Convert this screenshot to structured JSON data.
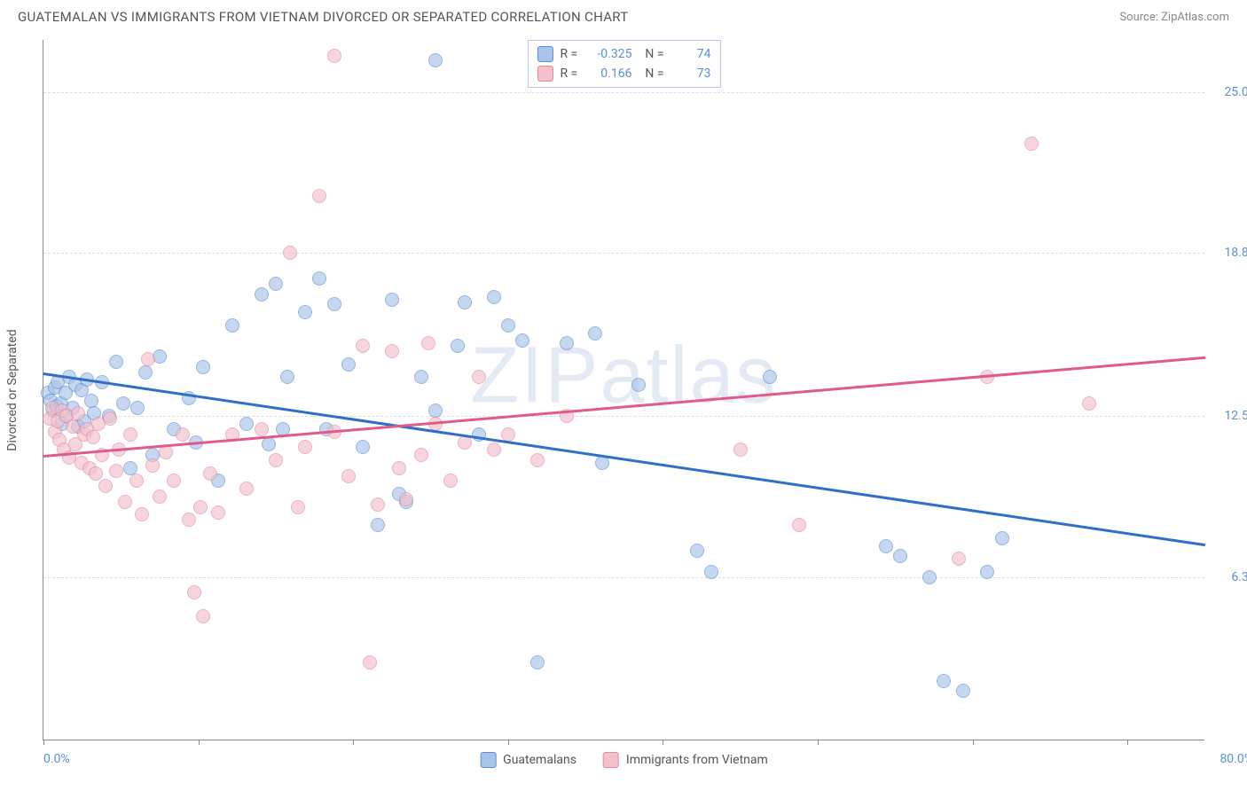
{
  "title": "GUATEMALAN VS IMMIGRANTS FROM VIETNAM DIVORCED OR SEPARATED CORRELATION CHART",
  "source_label": "Source:",
  "source_name": "ZipAtlas.com",
  "watermark": "ZIPatlas",
  "chart": {
    "type": "scatter",
    "xlim": [
      0,
      80
    ],
    "ylim": [
      0,
      27
    ],
    "yaxis_title": "Divorced or Separated",
    "yticks": [
      {
        "v": 6.3,
        "label": "6.3%"
      },
      {
        "v": 12.5,
        "label": "12.5%"
      },
      {
        "v": 18.8,
        "label": "18.8%"
      },
      {
        "v": 25.0,
        "label": "25.0%"
      }
    ],
    "xticks": [
      0,
      10.7,
      21.3,
      32.0,
      42.6,
      53.3,
      64.0,
      74.6
    ],
    "xaxis_left_label": "0.0%",
    "xaxis_right_label": "80.0%",
    "series": [
      {
        "name": "Guatemalans",
        "fill": "#a9c4e8",
        "stroke": "#5b8fd6",
        "line_color": "#2f6fc9",
        "R": "-0.325",
        "N": "74",
        "trend": {
          "y_at_x0": 14.2,
          "y_at_xmax": 7.6
        },
        "points": [
          [
            0.3,
            13.4
          ],
          [
            0.5,
            13.1
          ],
          [
            0.7,
            12.7
          ],
          [
            0.8,
            13.6
          ],
          [
            0.9,
            12.9
          ],
          [
            1.0,
            13.8
          ],
          [
            1.2,
            13.0
          ],
          [
            1.3,
            12.2
          ],
          [
            1.5,
            13.4
          ],
          [
            1.6,
            12.5
          ],
          [
            1.8,
            14.0
          ],
          [
            2.0,
            12.8
          ],
          [
            2.2,
            13.7
          ],
          [
            2.4,
            12.1
          ],
          [
            2.6,
            13.5
          ],
          [
            2.8,
            12.3
          ],
          [
            3.0,
            13.9
          ],
          [
            3.3,
            13.1
          ],
          [
            3.5,
            12.6
          ],
          [
            4.0,
            13.8
          ],
          [
            4.5,
            12.5
          ],
          [
            5.0,
            14.6
          ],
          [
            5.5,
            13.0
          ],
          [
            6.0,
            10.5
          ],
          [
            6.5,
            12.8
          ],
          [
            7.0,
            14.2
          ],
          [
            7.5,
            11.0
          ],
          [
            8.0,
            14.8
          ],
          [
            9.0,
            12.0
          ],
          [
            10.0,
            13.2
          ],
          [
            10.5,
            11.5
          ],
          [
            11.0,
            14.4
          ],
          [
            12.0,
            10.0
          ],
          [
            13.0,
            16.0
          ],
          [
            14.0,
            12.2
          ],
          [
            15.0,
            17.2
          ],
          [
            15.5,
            11.4
          ],
          [
            16.0,
            17.6
          ],
          [
            16.5,
            12.0
          ],
          [
            16.8,
            14.0
          ],
          [
            18.0,
            16.5
          ],
          [
            19.0,
            17.8
          ],
          [
            19.5,
            12.0
          ],
          [
            20.0,
            16.8
          ],
          [
            21.0,
            14.5
          ],
          [
            22.0,
            11.3
          ],
          [
            23.0,
            8.3
          ],
          [
            24.0,
            17.0
          ],
          [
            24.5,
            9.5
          ],
          [
            25.0,
            9.2
          ],
          [
            26.0,
            14.0
          ],
          [
            27.0,
            12.7
          ],
          [
            27.0,
            26.2
          ],
          [
            28.5,
            15.2
          ],
          [
            29.0,
            16.9
          ],
          [
            30.0,
            11.8
          ],
          [
            31.0,
            17.1
          ],
          [
            32.0,
            16.0
          ],
          [
            33.0,
            15.4
          ],
          [
            34.0,
            3.0
          ],
          [
            36.0,
            15.3
          ],
          [
            38.0,
            15.7
          ],
          [
            38.5,
            10.7
          ],
          [
            41.0,
            13.7
          ],
          [
            45.0,
            7.3
          ],
          [
            46.0,
            6.5
          ],
          [
            50.0,
            14.0
          ],
          [
            58.0,
            7.5
          ],
          [
            59.0,
            7.1
          ],
          [
            61.0,
            6.3
          ],
          [
            62.0,
            2.3
          ],
          [
            65.0,
            6.5
          ],
          [
            66.0,
            7.8
          ],
          [
            63.3,
            1.9
          ]
        ]
      },
      {
        "name": "Immigrants from Vietnam",
        "fill": "#f4c0cb",
        "stroke": "#e28aa0",
        "line_color": "#e15a8a",
        "R": "0.166",
        "N": "73",
        "trend": {
          "y_at_x0": 11.0,
          "y_at_xmax": 14.8
        },
        "points": [
          [
            0.4,
            12.4
          ],
          [
            0.6,
            12.8
          ],
          [
            0.8,
            11.9
          ],
          [
            1.0,
            12.3
          ],
          [
            1.1,
            11.6
          ],
          [
            1.3,
            12.7
          ],
          [
            1.4,
            11.2
          ],
          [
            1.6,
            12.5
          ],
          [
            1.8,
            10.9
          ],
          [
            2.0,
            12.1
          ],
          [
            2.2,
            11.4
          ],
          [
            2.4,
            12.6
          ],
          [
            2.6,
            10.7
          ],
          [
            2.8,
            11.8
          ],
          [
            3.0,
            12.0
          ],
          [
            3.2,
            10.5
          ],
          [
            3.4,
            11.7
          ],
          [
            3.6,
            10.3
          ],
          [
            3.8,
            12.2
          ],
          [
            4.0,
            11.0
          ],
          [
            4.3,
            9.8
          ],
          [
            4.6,
            12.4
          ],
          [
            5.0,
            10.4
          ],
          [
            5.2,
            11.2
          ],
          [
            5.6,
            9.2
          ],
          [
            6.0,
            11.8
          ],
          [
            6.4,
            10.0
          ],
          [
            6.8,
            8.7
          ],
          [
            7.2,
            14.7
          ],
          [
            7.5,
            10.6
          ],
          [
            8.0,
            9.4
          ],
          [
            8.4,
            11.1
          ],
          [
            9.0,
            10.0
          ],
          [
            9.6,
            11.8
          ],
          [
            10.0,
            8.5
          ],
          [
            10.4,
            5.7
          ],
          [
            10.8,
            9.0
          ],
          [
            11.0,
            4.8
          ],
          [
            11.5,
            10.3
          ],
          [
            12.0,
            8.8
          ],
          [
            13.0,
            11.8
          ],
          [
            14.0,
            9.7
          ],
          [
            15.0,
            12.0
          ],
          [
            16.0,
            10.8
          ],
          [
            17.0,
            18.8
          ],
          [
            17.5,
            9.0
          ],
          [
            18.0,
            11.3
          ],
          [
            19.0,
            21.0
          ],
          [
            20.0,
            11.9
          ],
          [
            20.0,
            26.4
          ],
          [
            21.0,
            10.2
          ],
          [
            22.0,
            15.2
          ],
          [
            22.5,
            3.0
          ],
          [
            23.0,
            9.1
          ],
          [
            24.0,
            15.0
          ],
          [
            24.5,
            10.5
          ],
          [
            25.0,
            9.3
          ],
          [
            26.0,
            11.0
          ],
          [
            26.5,
            15.3
          ],
          [
            27.0,
            12.2
          ],
          [
            28.0,
            10.0
          ],
          [
            29.0,
            11.5
          ],
          [
            30.0,
            14.0
          ],
          [
            31.0,
            11.2
          ],
          [
            32.0,
            11.8
          ],
          [
            34.0,
            10.8
          ],
          [
            36.0,
            12.5
          ],
          [
            48.0,
            11.2
          ],
          [
            52.0,
            8.3
          ],
          [
            63.0,
            7.0
          ],
          [
            65.0,
            14.0
          ],
          [
            68.0,
            23.0
          ],
          [
            72.0,
            13.0
          ]
        ]
      }
    ],
    "colors": {
      "axis": "#888888",
      "grid": "#dddddd",
      "tick_text": "#5b8fd6",
      "label_text": "#555555",
      "background": "#ffffff"
    },
    "font_size_title": 15,
    "font_size_labels": 14,
    "point_radius": 8,
    "line_width": 2.5
  }
}
